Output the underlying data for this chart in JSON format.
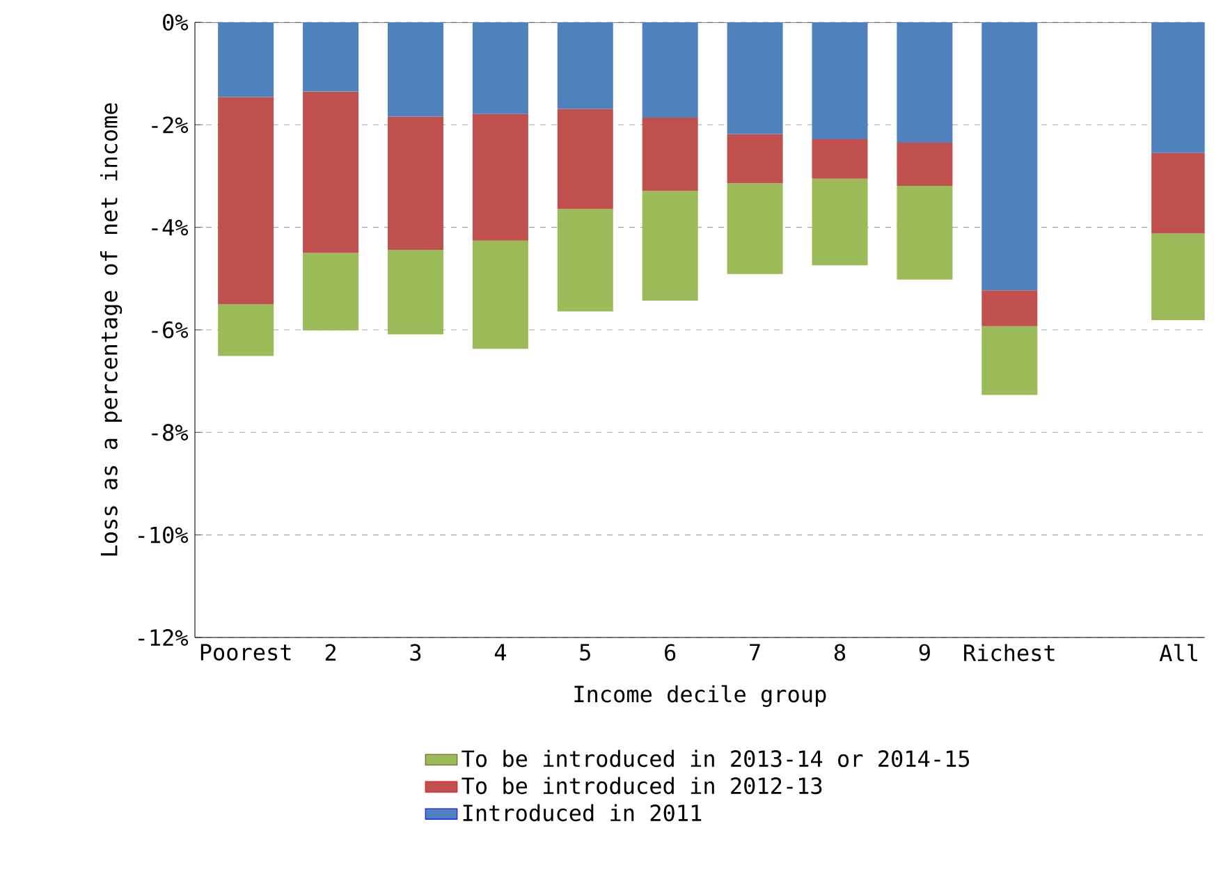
{
  "chart_data": {
    "type": "bar",
    "stacked": true,
    "xlabel": "Income decile group",
    "ylabel": "Loss as a percentage of net income",
    "categories": [
      "Poorest",
      "2",
      "3",
      "4",
      "5",
      "6",
      "7",
      "8",
      "9",
      "Richest",
      null,
      "All"
    ],
    "series": [
      {
        "name": "Introduced in 2011",
        "color": "#4f81bd",
        "values": [
          -1.46,
          -1.35,
          -1.84,
          -1.79,
          -1.69,
          -1.86,
          -2.18,
          -2.28,
          -2.35,
          -5.23,
          null,
          -2.55
        ]
      },
      {
        "name": "To be introduced in 2012-13",
        "color": "#c0504d",
        "values": [
          -4.04,
          -3.15,
          -2.6,
          -2.47,
          -1.95,
          -1.43,
          -0.96,
          -0.77,
          -0.84,
          -0.7,
          null,
          -1.57
        ]
      },
      {
        "name": "To be introduced in 2013-14 or 2014-15",
        "color": "#9bbb59",
        "values": [
          -1.01,
          -1.51,
          -1.65,
          -2.11,
          -2.0,
          -2.14,
          -1.77,
          -1.69,
          -1.83,
          -1.34,
          null,
          -1.69
        ]
      }
    ],
    "ylim": [
      -12,
      0
    ],
    "yticks": [
      {
        "value": 0,
        "label": "0%"
      },
      {
        "value": -2,
        "label": "-2%"
      },
      {
        "value": -4,
        "label": "-4%"
      },
      {
        "value": -6,
        "label": "-6%"
      },
      {
        "value": -8,
        "label": "-8%"
      },
      {
        "value": -10,
        "label": "-10%"
      },
      {
        "value": -12,
        "label": "-12%"
      }
    ],
    "grid": "y",
    "legend": "bottom"
  }
}
